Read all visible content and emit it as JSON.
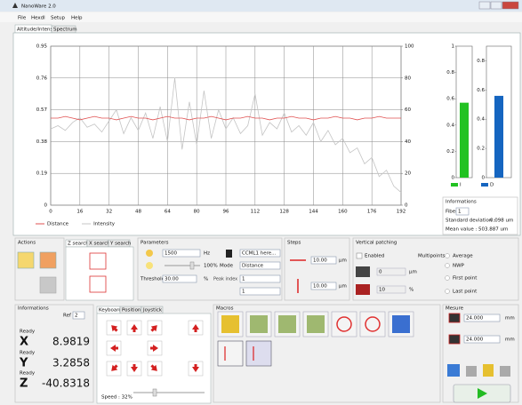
{
  "window": {
    "title": "NanoWare 2.0",
    "menu": [
      "File",
      "Hexdl",
      "Setup",
      "Help"
    ]
  },
  "tabs": [
    "Altitude/Intensity",
    "Spectrum"
  ],
  "chart_data": [
    {
      "type": "line",
      "x": [
        0,
        4,
        8,
        12,
        16,
        20,
        24,
        28,
        32,
        36,
        40,
        44,
        48,
        52,
        56,
        60,
        64,
        68,
        72,
        76,
        80,
        84,
        88,
        92,
        96,
        100,
        104,
        108,
        112,
        116,
        120,
        124,
        128,
        132,
        136,
        140,
        144,
        148,
        152,
        156,
        160,
        164,
        168,
        172,
        176,
        180,
        184,
        188,
        192
      ],
      "xlim": [
        0,
        192
      ],
      "xticks": [
        0,
        16,
        32,
        48,
        64,
        80,
        96,
        112,
        128,
        144,
        160,
        176,
        192
      ],
      "ylim": [
        0,
        0.95
      ],
      "yticks": [
        0,
        0.19,
        0.38,
        0.57,
        0.76,
        0.95
      ],
      "y2lim": [
        0,
        100
      ],
      "y2ticks": [
        0,
        20,
        40,
        60,
        80,
        100
      ],
      "grid": true,
      "series": [
        {
          "name": "Distance",
          "color": "#e05050",
          "values": [
            0.52,
            0.52,
            0.53,
            0.52,
            0.51,
            0.52,
            0.53,
            0.52,
            0.52,
            0.51,
            0.52,
            0.53,
            0.52,
            0.52,
            0.51,
            0.52,
            0.53,
            0.52,
            0.52,
            0.51,
            0.52,
            0.52,
            0.53,
            0.52,
            0.51,
            0.52,
            0.52,
            0.53,
            0.52,
            0.52,
            0.51,
            0.52,
            0.52,
            0.53,
            0.52,
            0.52,
            0.51,
            0.52,
            0.52,
            0.53,
            0.52,
            0.52,
            0.51,
            0.52,
            0.52,
            0.53,
            0.52,
            0.52,
            0.52
          ]
        },
        {
          "name": "Intensity",
          "color": "#c4c4c4",
          "axis": "y2",
          "values": [
            48,
            50,
            47,
            52,
            55,
            49,
            51,
            46,
            53,
            60,
            45,
            55,
            47,
            58,
            42,
            62,
            40,
            80,
            35,
            65,
            38,
            72,
            42,
            60,
            48,
            55,
            45,
            50,
            70,
            44,
            52,
            48,
            58,
            46,
            50,
            44,
            52,
            40,
            47,
            38,
            42,
            33,
            36,
            26,
            30,
            18,
            22,
            12,
            8
          ]
        }
      ]
    },
    {
      "type": "bar",
      "categories": [
        "I"
      ],
      "values": [
        0.57
      ],
      "color": "#22c222",
      "ylim": [
        0,
        1
      ],
      "yticks": [
        0,
        0.2,
        0.4,
        0.6,
        0.8,
        1
      ]
    },
    {
      "type": "bar",
      "categories": [
        "D"
      ],
      "values": [
        0.56
      ],
      "color": "#1565c0",
      "ylim": [
        0,
        0.9
      ],
      "yticks": [
        0,
        0.2,
        0.4,
        0.6,
        0.8
      ]
    }
  ],
  "fiber_info": {
    "title": "Informations",
    "fiber_label": "Fiber",
    "fiber": "1",
    "std_label": "Standard deviation :",
    "std": "0.098 um",
    "mean_label": "Mean value :",
    "mean": "503.887 um"
  },
  "actions": {
    "title": "Actions"
  },
  "search_tabs": [
    "Z search",
    "X search",
    "Y search"
  ],
  "parameters": {
    "title": "Parameters",
    "frequency": "1500",
    "frequency_unit": "Hz",
    "intensity": "100%",
    "threshold_label": "Threshold",
    "threshold": "30.00",
    "threshold_unit": "%",
    "sensor": "CCML1 here...",
    "mode_label": "Mode",
    "mode": "Distance",
    "peak_label": "Peak index",
    "peak1": "1",
    "peak2": "1"
  },
  "steps": {
    "title": "Steps",
    "step1": "10.00",
    "step2": "10.00",
    "unit": "µm"
  },
  "vertical_patching": {
    "title": "Vertical patching",
    "enabled": "Enabled",
    "multipoints": "Multipoints",
    "offset": "0",
    "offset_unit": "µm",
    "percent": "10",
    "percent_unit": "%",
    "options": [
      "Average",
      "NWP",
      "First point",
      "Last point"
    ]
  },
  "position_info": {
    "title": "Informations",
    "ref_label": "Ref",
    "ref": "2",
    "axes": [
      {
        "status": "Ready",
        "name": "X",
        "value": "8.9819"
      },
      {
        "status": "Ready",
        "name": "Y",
        "value": "3.2858"
      },
      {
        "status": "Ready",
        "name": "Z",
        "value": "-40.8318"
      }
    ]
  },
  "keyboard": {
    "tabs": [
      "Keyboard",
      "Position",
      "Joystick"
    ],
    "speed": "Speed : 32%"
  },
  "macros": {
    "title": "Macros"
  },
  "mesure": {
    "title": "Mesure",
    "value1": "24.000",
    "value2": "24.000",
    "unit": "mm"
  }
}
